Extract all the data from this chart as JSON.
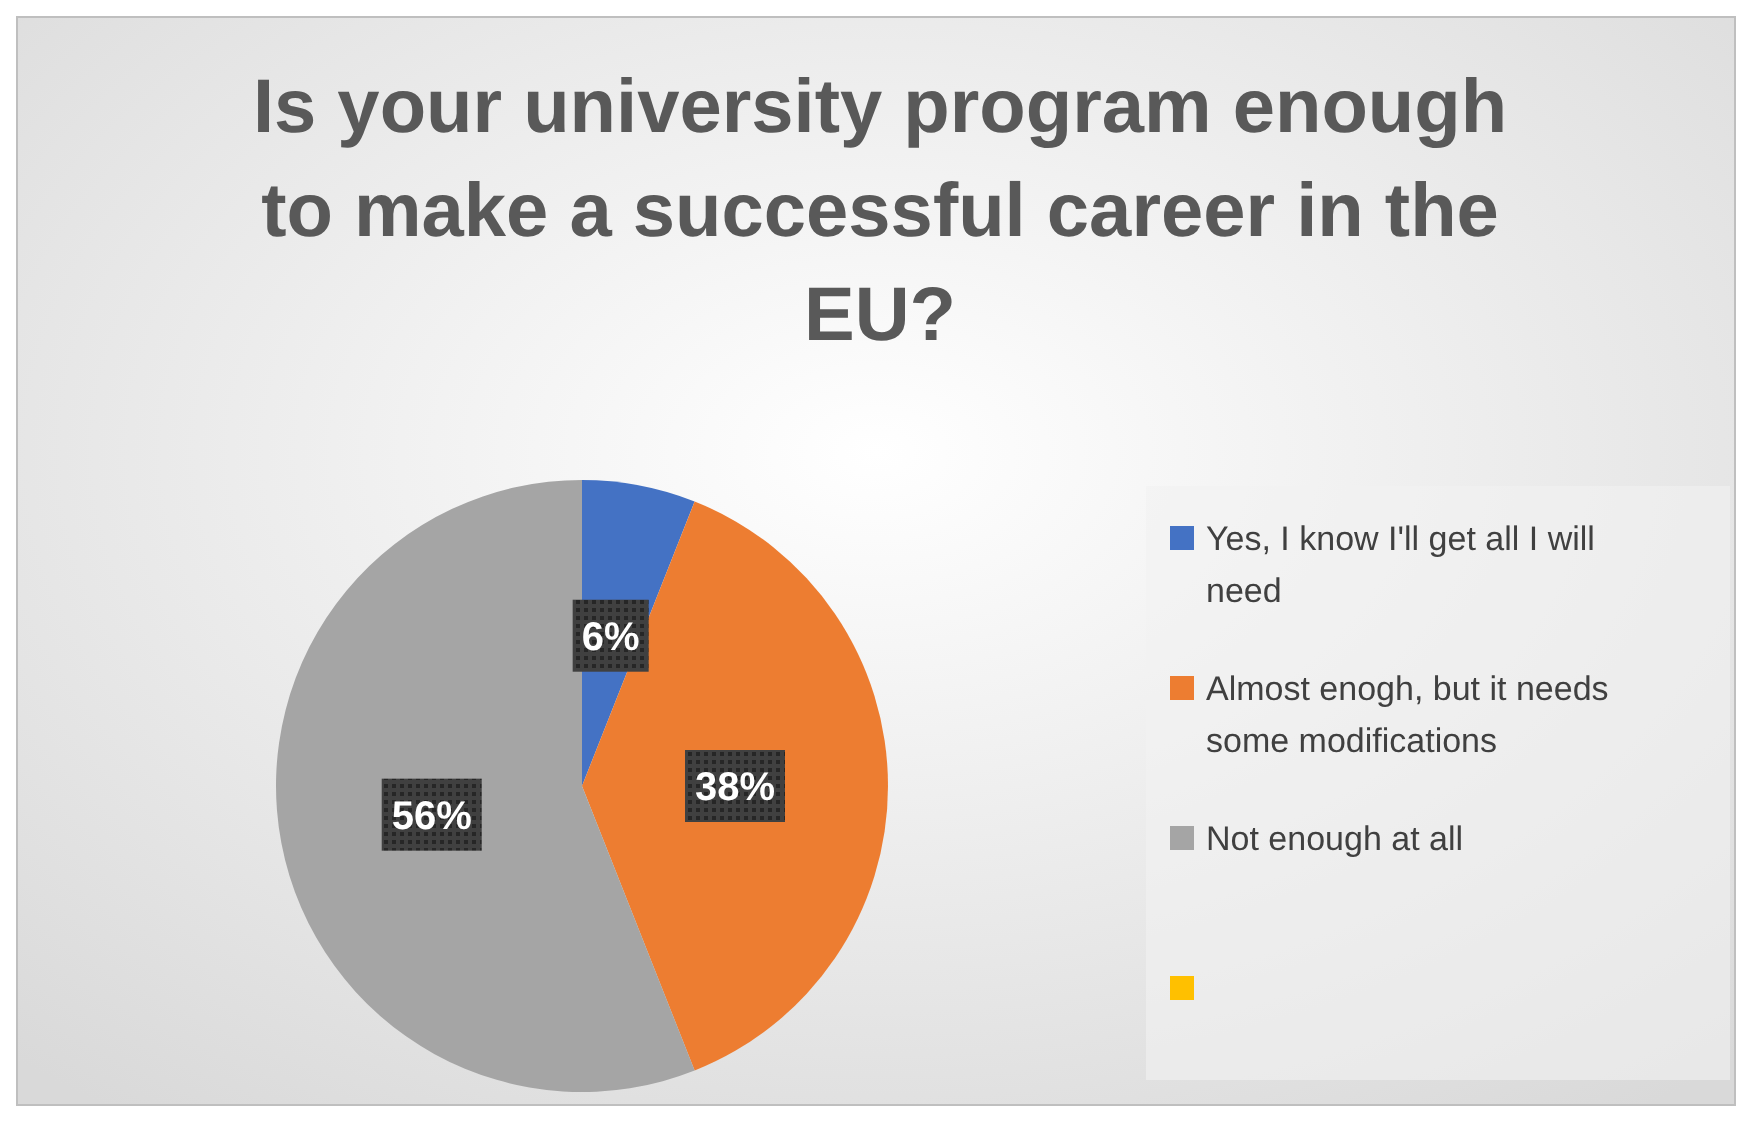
{
  "chart_data": {
    "type": "pie",
    "title": "Is your university program enough to make a successful career in the EU?",
    "categories": [
      "Yes, I know I'll get all I will need",
      "Almost enogh, but it needs some modifications",
      "Not enough at all",
      null
    ],
    "values": [
      6,
      38,
      56,
      0
    ],
    "colors": [
      "#4472c4",
      "#ed7d31",
      "#a5a5a5",
      "#ffc000"
    ],
    "value_labels": [
      "6%",
      "38%",
      "56%",
      null
    ],
    "legend": "right"
  }
}
